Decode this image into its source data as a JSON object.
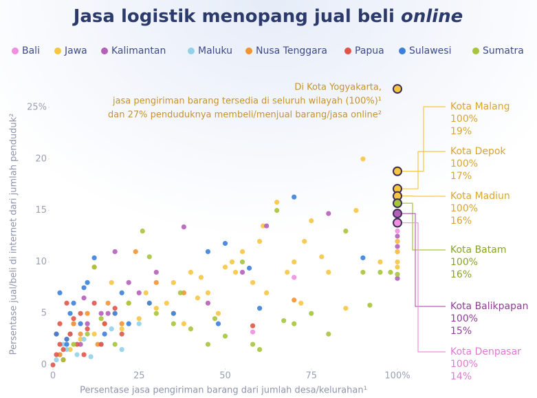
{
  "chart_data": {
    "type": "scatter",
    "title": {
      "text": "Jasa logistik menopang jual beli",
      "emphasis": "online"
    },
    "x_label": "Persentase jasa pengiriman barang dari jumlah desa/kelurahan¹",
    "y_label": "Persentase jual/beli di internet dari jumlah penduduk²",
    "xlim": [
      0,
      100
    ],
    "ylim": [
      0,
      25
    ],
    "xticks": [
      0,
      25,
      50,
      75,
      {
        "value": 100,
        "label": "100%"
      }
    ],
    "yticks": [
      0,
      5,
      10,
      15,
      20,
      {
        "value": 25,
        "label": "25%"
      }
    ],
    "grid": false,
    "legend": "top",
    "series": [
      {
        "name": "Bali",
        "color": "#f08ee0",
        "x": [
          70,
          58,
          100,
          100,
          100
        ],
        "values": [
          8.5,
          3.2,
          13,
          12,
          11
        ]
      },
      {
        "name": "Jawa",
        "color": "#f6c544",
        "x": [
          5,
          8,
          12,
          15,
          18,
          20,
          22,
          25,
          27,
          30,
          33,
          35,
          38,
          40,
          42,
          45,
          48,
          50,
          52,
          55,
          58,
          60,
          62,
          65,
          68,
          70,
          72,
          75,
          78,
          80,
          85,
          90,
          95,
          100,
          100,
          100,
          100,
          88,
          73,
          61,
          43,
          28,
          17,
          35,
          53
        ],
        "values": [
          1.5,
          2.5,
          3,
          4,
          5,
          3.5,
          6,
          4.5,
          7,
          5.5,
          6,
          8,
          4,
          9,
          6.5,
          7,
          5,
          9.5,
          10,
          11,
          8,
          12,
          7,
          15.8,
          9,
          10,
          6,
          14,
          10.5,
          9,
          5.5,
          20,
          10,
          12,
          11,
          10,
          9.5,
          15,
          12,
          13.5,
          8.5,
          6,
          8,
          5,
          9
        ]
      },
      {
        "name": "Kalimantan",
        "color": "#b45fb8",
        "x": [
          2,
          5,
          8,
          10,
          14,
          18,
          22,
          25,
          30,
          38,
          45,
          55,
          62,
          80,
          100,
          100,
          100,
          16,
          9
        ],
        "values": [
          1,
          3,
          2,
          4,
          5,
          11,
          8,
          7,
          9,
          13.4,
          6,
          9,
          13.5,
          14.7,
          12.5,
          11.5,
          8.4,
          5,
          6.5
        ]
      },
      {
        "name": "Maluku",
        "color": "#92d2e8",
        "x": [
          1,
          2,
          3,
          4,
          5,
          7,
          9,
          11,
          14,
          17,
          20,
          25,
          6
        ],
        "values": [
          0.5,
          1,
          2,
          1.5,
          3,
          1,
          2.5,
          0.8,
          2,
          3.5,
          1.5,
          4,
          4
        ]
      },
      {
        "name": "Nusa Tenggara",
        "color": "#f39433",
        "x": [
          2,
          4,
          6,
          8,
          10,
          13,
          16,
          20,
          24,
          30,
          38,
          70,
          12,
          3
        ],
        "values": [
          1,
          2.5,
          4,
          3,
          5,
          2,
          6,
          4,
          11,
          8,
          7,
          6.3,
          9.5,
          0.5
        ]
      },
      {
        "name": "Papua",
        "color": "#e05548",
        "x": [
          0,
          1,
          2,
          2,
          3,
          4,
          5,
          6,
          7,
          8,
          10,
          12,
          15,
          18,
          20,
          1,
          3,
          58,
          9,
          14
        ],
        "values": [
          0,
          1,
          2,
          4,
          1.5,
          6,
          3,
          4.5,
          2,
          5,
          3.5,
          6,
          4,
          5.5,
          3,
          3,
          0.5,
          3.8,
          1,
          2
        ]
      },
      {
        "name": "Sulawesi",
        "color": "#3a7fdc",
        "x": [
          1,
          2,
          4,
          5,
          6,
          8,
          10,
          12,
          15,
          18,
          20,
          22,
          28,
          35,
          45,
          48,
          50,
          57,
          60,
          70,
          90,
          4,
          9
        ],
        "values": [
          3,
          7,
          2.5,
          5,
          6,
          4,
          8,
          10.4,
          3,
          5,
          7,
          4,
          6,
          5,
          11,
          4,
          11.8,
          9.4,
          5.5,
          16.3,
          10.4,
          2,
          7.5
        ]
      },
      {
        "name": "Sumatra",
        "color": "#a6c43c",
        "x": [
          3,
          6,
          10,
          14,
          18,
          22,
          26,
          30,
          35,
          40,
          45,
          50,
          55,
          60,
          65,
          70,
          75,
          80,
          85,
          90,
          95,
          98,
          100,
          92,
          58,
          67,
          28,
          12,
          47,
          37
        ],
        "values": [
          0.5,
          2,
          3,
          4.5,
          2,
          6,
          13,
          5,
          4,
          3.5,
          2,
          2.8,
          10,
          1.5,
          15,
          4,
          5,
          3,
          13,
          9,
          9,
          9,
          8.8,
          5.8,
          2,
          4.3,
          10.5,
          9.5,
          4.5,
          7
        ]
      }
    ],
    "annotation": {
      "x": 100,
      "y": 26.8,
      "color": "#f6c544",
      "lines": [
        "Di Kota Yogyakarta,",
        "jasa pengiriman barang tersedia di seluruh wilayah (100%)¹",
        "dan 27% penduduknya membeli/menjual barang/jasa online²"
      ]
    },
    "highlights": [
      {
        "name": "Kota Malang",
        "x": 100,
        "y": 18.8,
        "x_label": "100%",
        "y_label": "19%",
        "color": "#f6c544",
        "text_color": "#d9a52e"
      },
      {
        "name": "Kota Depok",
        "x": 100,
        "y": 17.1,
        "x_label": "100%",
        "y_label": "17%",
        "color": "#f6c544",
        "text_color": "#d9a52e"
      },
      {
        "name": "Kota Madiun",
        "x": 100,
        "y": 16.4,
        "x_label": "100%",
        "y_label": "16%",
        "color": "#f6c544",
        "text_color": "#d9a52e"
      },
      {
        "name": "Kota Batam",
        "x": 100,
        "y": 15.7,
        "x_label": "100%",
        "y_label": "16%",
        "color": "#a6c43c",
        "text_color": "#86a325"
      },
      {
        "name": "Kota Balikpapan",
        "x": 100,
        "y": 14.7,
        "x_label": "100%",
        "y_label": "15%",
        "color": "#b45fb8",
        "text_color": "#8e3d93"
      },
      {
        "name": "Kota Denpasar",
        "x": 100,
        "y": 13.8,
        "x_label": "100%",
        "y_label": "14%",
        "color": "#f08ee0",
        "text_color": "#e07ad0"
      }
    ]
  }
}
